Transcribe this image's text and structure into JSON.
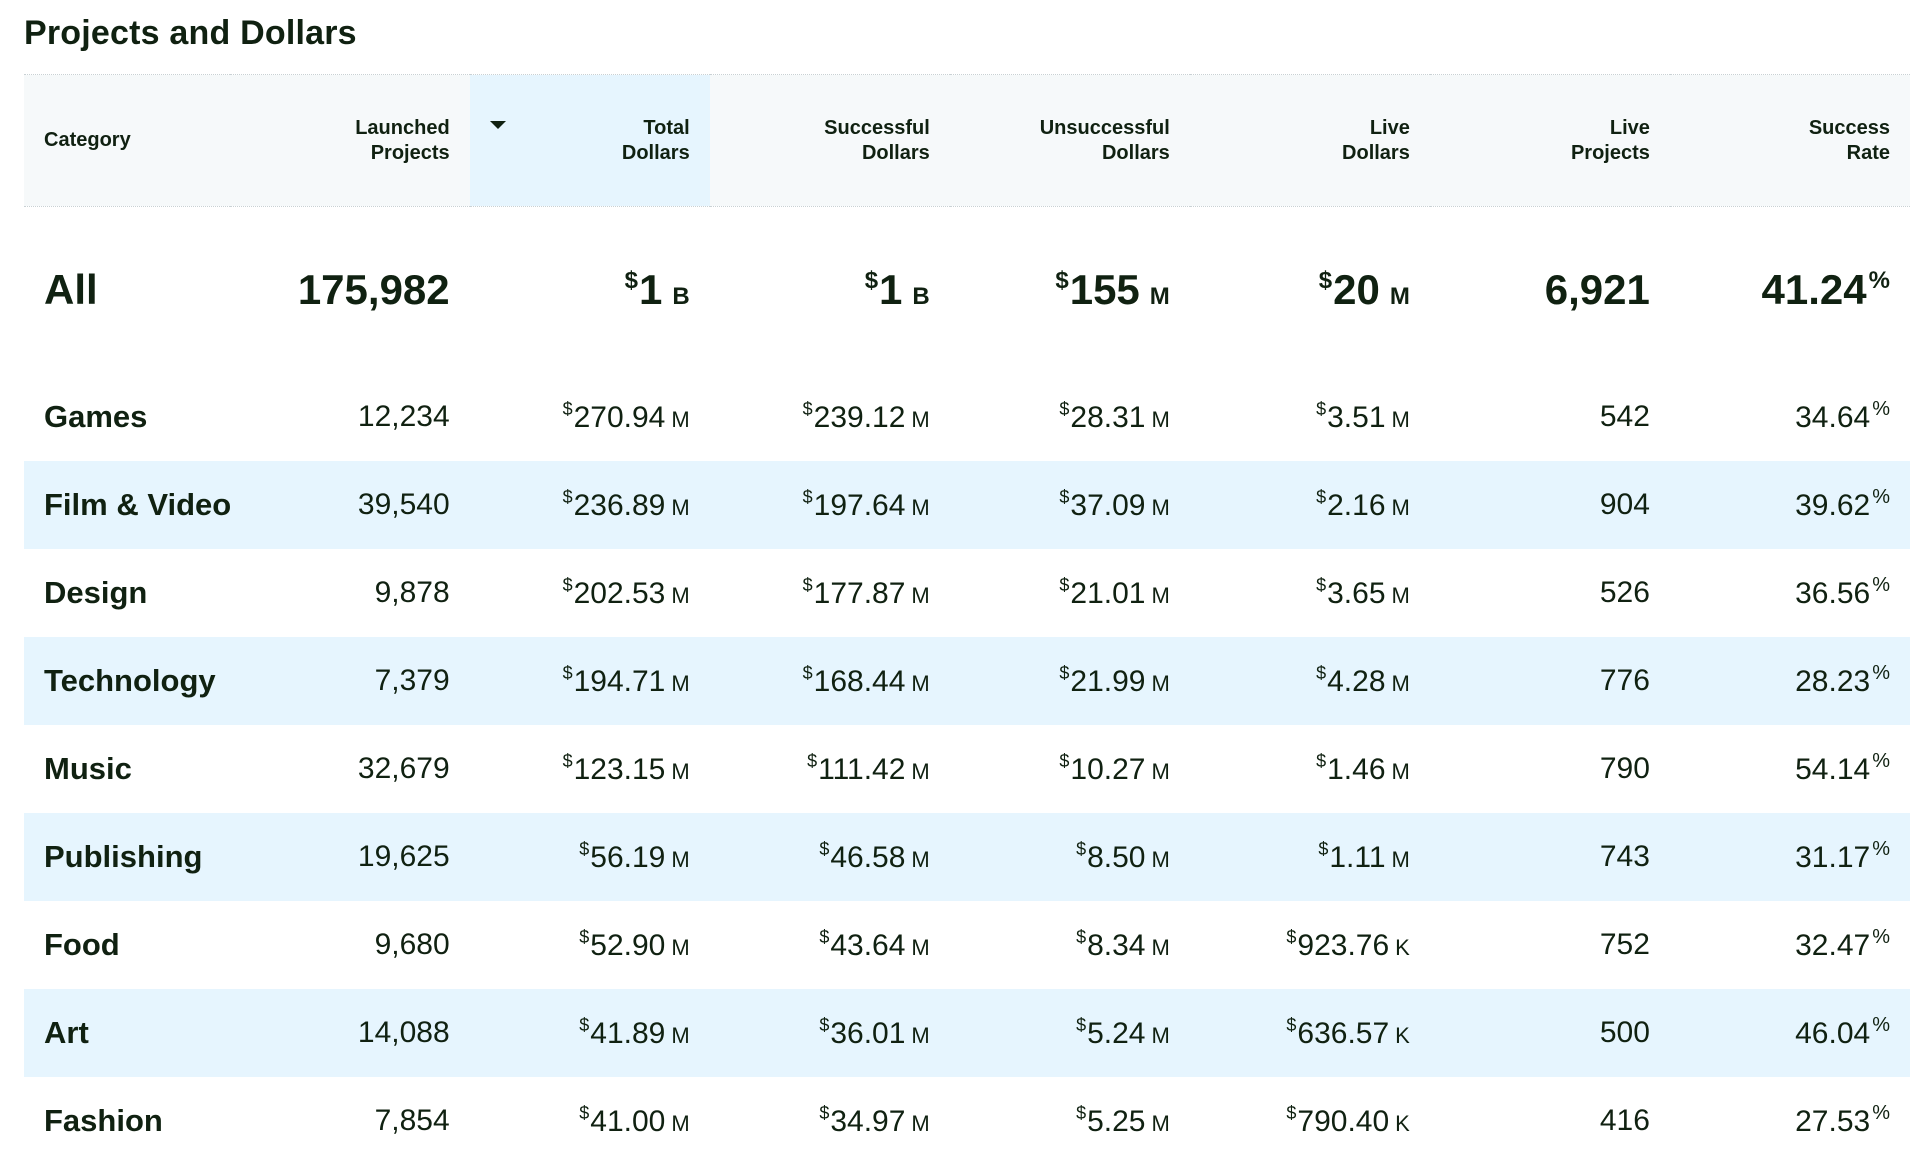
{
  "page": {
    "title": "Projects and Dollars"
  },
  "columns": {
    "category": "Category",
    "launched_1": "Launched",
    "launched_2": "Projects",
    "total_1": "Total",
    "total_2": "Dollars",
    "successful_1": "Successful",
    "successful_2": "Dollars",
    "unsuccessful_1": "Unsuccessful",
    "unsuccessful_2": "Dollars",
    "live_dollars_1": "Live",
    "live_dollars_2": "Dollars",
    "live_projects_1": "Live",
    "live_projects_2": "Projects",
    "success_rate_1": "Success",
    "success_rate_2": "Rate",
    "sorted_column": "Total Dollars"
  },
  "symbols": {
    "currency": "$",
    "percent": "%"
  },
  "all": {
    "category": "All",
    "launched": "175,982",
    "total": "1",
    "total_unit": "B",
    "successful": "1",
    "successful_unit": "B",
    "unsuccessful": "155",
    "unsuccessful_unit": "M",
    "live_dollars": "20",
    "live_dollars_unit": "M",
    "live_projects": "6,921",
    "success_rate": "41.24"
  },
  "rows": [
    {
      "category": "Games",
      "launched": "12,234",
      "total": "270.94",
      "total_unit": "M",
      "successful": "239.12",
      "successful_unit": "M",
      "unsuccessful": "28.31",
      "unsuccessful_unit": "M",
      "live_dollars": "3.51",
      "live_dollars_unit": "M",
      "live_projects": "542",
      "success_rate": "34.64"
    },
    {
      "category": "Film & Video",
      "launched": "39,540",
      "total": "236.89",
      "total_unit": "M",
      "successful": "197.64",
      "successful_unit": "M",
      "unsuccessful": "37.09",
      "unsuccessful_unit": "M",
      "live_dollars": "2.16",
      "live_dollars_unit": "M",
      "live_projects": "904",
      "success_rate": "39.62"
    },
    {
      "category": "Design",
      "launched": "9,878",
      "total": "202.53",
      "total_unit": "M",
      "successful": "177.87",
      "successful_unit": "M",
      "unsuccessful": "21.01",
      "unsuccessful_unit": "M",
      "live_dollars": "3.65",
      "live_dollars_unit": "M",
      "live_projects": "526",
      "success_rate": "36.56"
    },
    {
      "category": "Technology",
      "launched": "7,379",
      "total": "194.71",
      "total_unit": "M",
      "successful": "168.44",
      "successful_unit": "M",
      "unsuccessful": "21.99",
      "unsuccessful_unit": "M",
      "live_dollars": "4.28",
      "live_dollars_unit": "M",
      "live_projects": "776",
      "success_rate": "28.23"
    },
    {
      "category": "Music",
      "launched": "32,679",
      "total": "123.15",
      "total_unit": "M",
      "successful": "111.42",
      "successful_unit": "M",
      "unsuccessful": "10.27",
      "unsuccessful_unit": "M",
      "live_dollars": "1.46",
      "live_dollars_unit": "M",
      "live_projects": "790",
      "success_rate": "54.14"
    },
    {
      "category": "Publishing",
      "launched": "19,625",
      "total": "56.19",
      "total_unit": "M",
      "successful": "46.58",
      "successful_unit": "M",
      "unsuccessful": "8.50",
      "unsuccessful_unit": "M",
      "live_dollars": "1.11",
      "live_dollars_unit": "M",
      "live_projects": "743",
      "success_rate": "31.17"
    },
    {
      "category": "Food",
      "launched": "9,680",
      "total": "52.90",
      "total_unit": "M",
      "successful": "43.64",
      "successful_unit": "M",
      "unsuccessful": "8.34",
      "unsuccessful_unit": "M",
      "live_dollars": "923.76",
      "live_dollars_unit": "K",
      "live_projects": "752",
      "success_rate": "32.47"
    },
    {
      "category": "Art",
      "launched": "14,088",
      "total": "41.89",
      "total_unit": "M",
      "successful": "36.01",
      "successful_unit": "M",
      "unsuccessful": "5.24",
      "unsuccessful_unit": "M",
      "live_dollars": "636.57",
      "live_dollars_unit": "K",
      "live_projects": "500",
      "success_rate": "46.04"
    },
    {
      "category": "Fashion",
      "launched": "7,854",
      "total": "41.00",
      "total_unit": "M",
      "successful": "34.97",
      "successful_unit": "M",
      "unsuccessful": "5.25",
      "unsuccessful_unit": "M",
      "live_dollars": "790.40",
      "live_dollars_unit": "K",
      "live_projects": "416",
      "success_rate": "27.53"
    }
  ]
}
